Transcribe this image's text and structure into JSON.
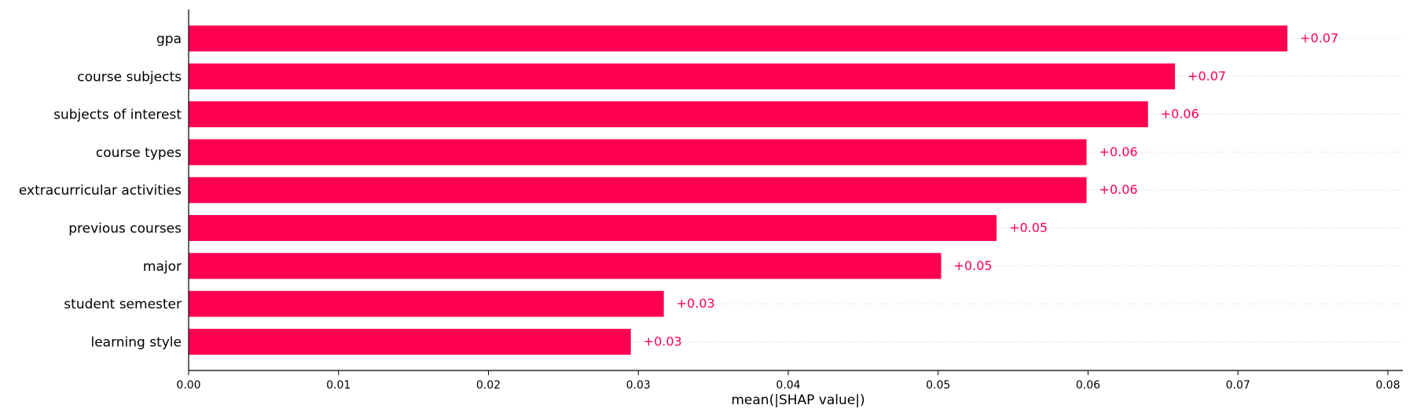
{
  "chart_data": {
    "type": "bar",
    "orientation": "horizontal",
    "categories": [
      "gpa",
      "course subjects",
      "subjects of interest",
      "course types",
      "extracurricular activities",
      "previous courses",
      "major",
      "student semester",
      "learning style"
    ],
    "values": [
      0.0733,
      0.0658,
      0.064,
      0.0599,
      0.0599,
      0.0539,
      0.0502,
      0.0317,
      0.0295
    ],
    "value_labels": [
      "+0.07",
      "+0.07",
      "+0.06",
      "+0.06",
      "+0.06",
      "+0.05",
      "+0.05",
      "+0.03",
      "+0.03"
    ],
    "xlabel": "mean(|SHAP value|)",
    "ylabel": "",
    "title": "",
    "xlim": [
      0,
      0.081
    ],
    "xticks": [
      0.0,
      0.01,
      0.02,
      0.03,
      0.04,
      0.05,
      0.06,
      0.07,
      0.08
    ],
    "xtick_labels": [
      "0.00",
      "0.01",
      "0.02",
      "0.03",
      "0.04",
      "0.05",
      "0.06",
      "0.07",
      "0.08"
    ],
    "bar_color": "#ff0051",
    "grid": "dotted horizontal guide lines per bar",
    "legend": "none"
  }
}
